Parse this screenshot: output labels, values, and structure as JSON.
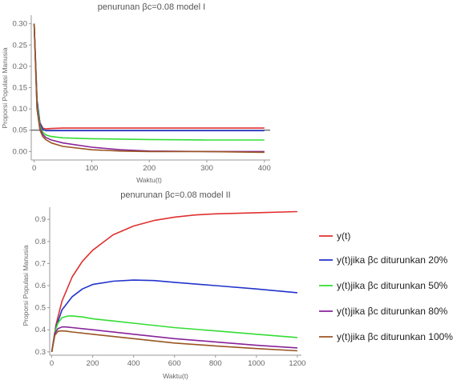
{
  "legend": [
    "y(t)",
    "y(t)jika βc diturunkan 20%",
    "y(t)jika βc diturunkan 50%",
    "y(t)jika βc diturunkan 80%",
    "y(t)jika βc diturunkan 100%"
  ],
  "chart_data": [
    {
      "type": "line",
      "title": "penurunan βc=0.08 model I",
      "xlabel": "Waktu(t)",
      "ylabel": "Proporsi Populasi Manusia",
      "xlim": [
        -5,
        410
      ],
      "ylim": [
        -0.02,
        0.32
      ],
      "xticks": [
        0,
        100,
        200,
        300,
        400
      ],
      "yticks": [
        0.0,
        0.05,
        0.1,
        0.15,
        0.2,
        0.25,
        0.3
      ],
      "ytick_labels": [
        "0.00",
        "0.05",
        "0.10",
        "0.15",
        "0.20",
        "0.25",
        "0.30"
      ],
      "hline": 0.05,
      "grid": false,
      "series": [
        {
          "color": "#e03030",
          "x": [
            0,
            5,
            10,
            15,
            20,
            30,
            50,
            100,
            200,
            400
          ],
          "y": [
            0.3,
            0.12,
            0.068,
            0.055,
            0.053,
            0.054,
            0.055,
            0.055,
            0.055,
            0.055
          ]
        },
        {
          "color": "#2233cc",
          "x": [
            0,
            5,
            10,
            15,
            20,
            30,
            50,
            100,
            200,
            400
          ],
          "y": [
            0.3,
            0.12,
            0.066,
            0.052,
            0.049,
            0.049,
            0.049,
            0.049,
            0.049,
            0.049
          ]
        },
        {
          "color": "#33dd33",
          "x": [
            0,
            5,
            10,
            15,
            20,
            30,
            50,
            100,
            200,
            300,
            400
          ],
          "y": [
            0.3,
            0.11,
            0.06,
            0.045,
            0.039,
            0.035,
            0.032,
            0.03,
            0.028,
            0.027,
            0.027
          ]
        },
        {
          "color": "#882299",
          "x": [
            0,
            5,
            10,
            15,
            20,
            30,
            50,
            100,
            150,
            200,
            300,
            400
          ],
          "y": [
            0.3,
            0.1,
            0.055,
            0.04,
            0.033,
            0.027,
            0.02,
            0.01,
            0.004,
            0.001,
            0.0,
            0.0
          ]
        },
        {
          "color": "#995522",
          "x": [
            0,
            5,
            10,
            15,
            20,
            30,
            50,
            100,
            150,
            200,
            300,
            400
          ],
          "y": [
            0.3,
            0.1,
            0.05,
            0.035,
            0.028,
            0.02,
            0.012,
            0.004,
            0.001,
            0.0,
            0.0,
            -0.002
          ]
        }
      ]
    },
    {
      "type": "line",
      "title": "penurunan βc=0.08 model II",
      "xlabel": "Waktu(t)",
      "ylabel": "Proporsi Populasi Manusia",
      "xlim": [
        -10,
        1220
      ],
      "ylim": [
        0.285,
        0.955
      ],
      "xticks": [
        0,
        200,
        400,
        600,
        800,
        1000,
        1200
      ],
      "yticks": [
        0.3,
        0.4,
        0.5,
        0.6,
        0.7,
        0.8,
        0.9
      ],
      "ytick_labels": [
        "0.3",
        "0.4",
        "0.5",
        "0.6",
        "0.7",
        "0.8",
        "0.9"
      ],
      "grid": false,
      "series": [
        {
          "name": "y(t)",
          "color": "#e03030",
          "x": [
            0,
            20,
            50,
            100,
            150,
            200,
            300,
            400,
            500,
            600,
            700,
            800,
            1000,
            1200
          ],
          "y": [
            0.3,
            0.42,
            0.53,
            0.64,
            0.71,
            0.76,
            0.83,
            0.87,
            0.895,
            0.91,
            0.92,
            0.925,
            0.93,
            0.935
          ]
        },
        {
          "name": "y(t)jika βc diturunkan 20%",
          "color": "#2233cc",
          "x": [
            0,
            20,
            50,
            100,
            150,
            200,
            300,
            400,
            500,
            600,
            800,
            1000,
            1200
          ],
          "y": [
            0.3,
            0.41,
            0.49,
            0.55,
            0.585,
            0.605,
            0.62,
            0.625,
            0.623,
            0.615,
            0.6,
            0.585,
            0.568
          ]
        },
        {
          "name": "y(t)jika βc diturunkan 50%",
          "color": "#33dd33",
          "x": [
            0,
            15,
            30,
            50,
            80,
            100,
            150,
            200,
            300,
            400,
            600,
            800,
            1000,
            1200
          ],
          "y": [
            0.3,
            0.39,
            0.43,
            0.455,
            0.463,
            0.463,
            0.458,
            0.45,
            0.44,
            0.43,
            0.41,
            0.395,
            0.38,
            0.365
          ]
        },
        {
          "name": "y(t)jika βc diturunkan 80%",
          "color": "#882299",
          "x": [
            0,
            15,
            30,
            50,
            70,
            100,
            200,
            400,
            600,
            800,
            1000,
            1200
          ],
          "y": [
            0.3,
            0.385,
            0.405,
            0.413,
            0.413,
            0.41,
            0.4,
            0.38,
            0.36,
            0.345,
            0.33,
            0.318
          ]
        },
        {
          "name": "y(t)jika βc diturunkan 100%",
          "color": "#995522",
          "x": [
            0,
            15,
            30,
            50,
            70,
            100,
            200,
            400,
            600,
            800,
            1000,
            1200
          ],
          "y": [
            0.3,
            0.375,
            0.393,
            0.395,
            0.394,
            0.39,
            0.38,
            0.36,
            0.34,
            0.327,
            0.315,
            0.305
          ]
        }
      ]
    }
  ]
}
